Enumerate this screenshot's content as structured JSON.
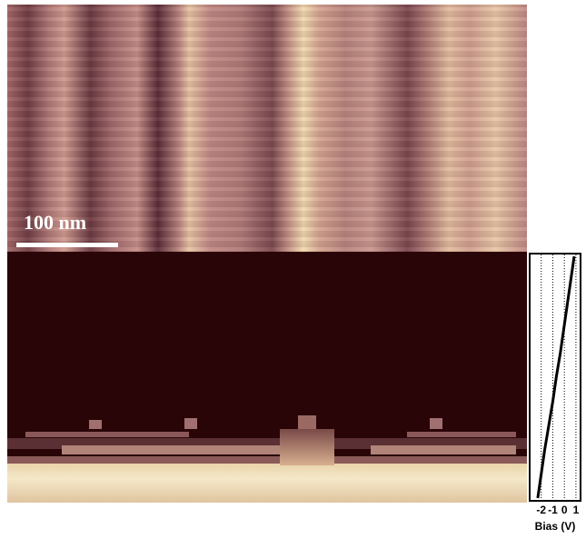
{
  "scale_label": "100 nm",
  "chart_data": {
    "type": "line",
    "x_label": "Bias (V)",
    "values": [
      -2.3,
      -2.0,
      -1.7,
      -1.35,
      -1.0,
      -0.7,
      -0.35,
      -0.05,
      0.25,
      0.55,
      0.85
    ],
    "xlim": [
      -3,
      1.4
    ],
    "xticks": [
      -2,
      -1,
      0,
      1
    ],
    "grid": true,
    "color": "#000000"
  }
}
